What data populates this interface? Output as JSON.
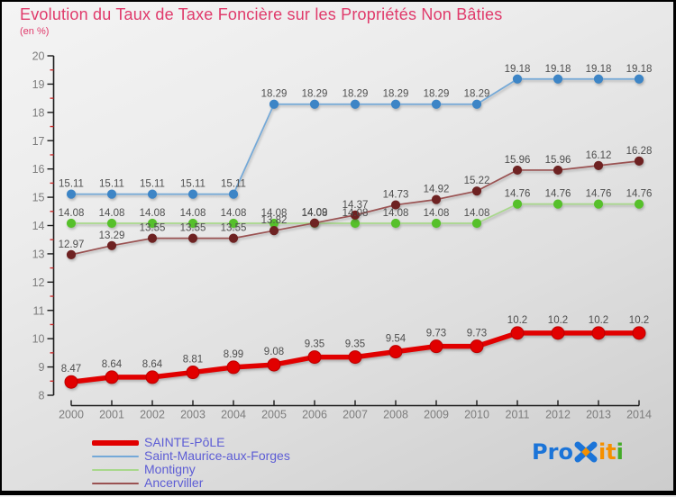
{
  "header": {
    "title": "Evolution du Taux de Taxe Foncière sur les Propriétés Non Bâties",
    "subtitle": "(en %)"
  },
  "chart_data": {
    "type": "line",
    "title": "Evolution du Taux de Taxe Foncière sur les Propriétés Non Bâties",
    "subtitle": "(en %)",
    "x": [
      2000,
      2001,
      2002,
      2003,
      2004,
      2005,
      2006,
      2007,
      2008,
      2009,
      2010,
      2011,
      2012,
      2013,
      2014
    ],
    "x_tick_labels": [
      "2000",
      "2001",
      "2002",
      "2003",
      "2004",
      "2005",
      "2006",
      "2007",
      "2008",
      "2009",
      "2010",
      "2011",
      "2012",
      "2013",
      "2014"
    ],
    "ylim": [
      8,
      20
    ],
    "y_ticks": [
      8,
      9,
      10,
      11,
      12,
      13,
      14,
      15,
      16,
      17,
      18,
      19,
      20
    ],
    "y_minor_step": 0.5,
    "grid": false,
    "legend_position": "bottom-left",
    "axis_color": "#1a1a1a",
    "minor_tick_color": "#cf3030",
    "tick_label_color": "#7d7d7d",
    "point_label_color": "#4f4f4f",
    "draw_order": [
      1,
      2,
      3,
      0
    ],
    "series": [
      {
        "name": "SAINTE-PôLE",
        "color": "#e10000",
        "line_color": "#e10000",
        "line_width": 5.5,
        "marker_radius": 7,
        "marker_stroke": "#bc0000",
        "label_dy": -11,
        "values": [
          8.47,
          8.64,
          8.64,
          8.81,
          8.99,
          9.08,
          9.35,
          9.35,
          9.54,
          9.73,
          9.73,
          10.2,
          10.2,
          10.2,
          10.2
        ],
        "labels": [
          "8.47",
          "8.64",
          "8.64",
          "8.81",
          "8.99",
          "9.08",
          "9.35",
          "9.35",
          "9.54",
          "9.73",
          "9.73",
          "10.2",
          "10.2",
          "10.2",
          "10.2"
        ]
      },
      {
        "name": "Saint-Maurice-aux-Forges",
        "color": "#3d85c6",
        "line_color": "#74a9d8",
        "line_width": 1.7,
        "marker_radius": 4.6,
        "marker_stroke": "#3d85c6",
        "label_dy": -8,
        "values": [
          15.11,
          15.11,
          15.11,
          15.11,
          15.11,
          18.29,
          18.29,
          18.29,
          18.29,
          18.29,
          18.29,
          19.18,
          19.18,
          19.18,
          19.18
        ],
        "labels": [
          "15.11",
          "15.11",
          "15.11",
          "15.11",
          "15.11",
          "18.29",
          "18.29",
          "18.29",
          "18.29",
          "18.29",
          "18.29",
          "19.18",
          "19.18",
          "19.18",
          "19.18"
        ]
      },
      {
        "name": "Montigny",
        "color": "#56c02b",
        "line_color": "#a8d88b",
        "line_width": 1.7,
        "marker_radius": 4.6,
        "marker_stroke": "#56c02b",
        "label_dy": -8,
        "values": [
          14.08,
          14.08,
          14.08,
          14.08,
          14.08,
          14.08,
          14.08,
          14.08,
          14.08,
          14.08,
          14.08,
          14.76,
          14.76,
          14.76,
          14.76
        ],
        "labels": [
          "14.08",
          "14.08",
          "14.08",
          "14.08",
          "14.08",
          "14.08",
          "14.08",
          "14.08",
          "14.08",
          "14.08",
          "14.08",
          "14.76",
          "14.76",
          "14.76",
          "14.76"
        ]
      },
      {
        "name": "Ancerviller",
        "color": "#6e2222",
        "line_color": "#9a5252",
        "line_width": 1.7,
        "marker_radius": 4.6,
        "marker_stroke": "#6e2222",
        "label_dy": -8,
        "values": [
          12.97,
          13.29,
          13.55,
          13.55,
          13.55,
          13.82,
          14.09,
          14.37,
          14.73,
          14.92,
          15.22,
          15.96,
          15.96,
          16.12,
          16.28
        ],
        "labels": [
          "12.97",
          "13.29",
          "13.55",
          "13.55",
          "13.55",
          "13.82",
          "14.09",
          "14.37",
          "14.73",
          "14.92",
          "15.22",
          "15.96",
          "15.96",
          "16.12",
          "16.28"
        ]
      }
    ]
  },
  "legend": {
    "text_color": "#5d5dd5",
    "items": [
      {
        "label": "SAINTE-PôLE",
        "color": "#e10000",
        "thick": true
      },
      {
        "label": "Saint-Maurice-aux-Forges",
        "color": "#74a9d8",
        "thick": false
      },
      {
        "label": "Montigny",
        "color": "#a8d88b",
        "thick": false
      },
      {
        "label": "Ancerviller",
        "color": "#9a5252",
        "thick": false
      }
    ]
  },
  "logo": {
    "letters": [
      {
        "ch": "P",
        "color": "#1b74d8"
      },
      {
        "ch": "r",
        "color": "#1b74d8"
      },
      {
        "ch": "o",
        "color": "#1b74d8"
      },
      {
        "ch": "x",
        "color": "#1b74d8",
        "special": true,
        "diamond_color": "#f59000"
      },
      {
        "ch": "i",
        "color": "#f59000"
      },
      {
        "ch": "t",
        "color": "#f59000"
      },
      {
        "ch": "i",
        "color": "#43ab28"
      }
    ]
  }
}
